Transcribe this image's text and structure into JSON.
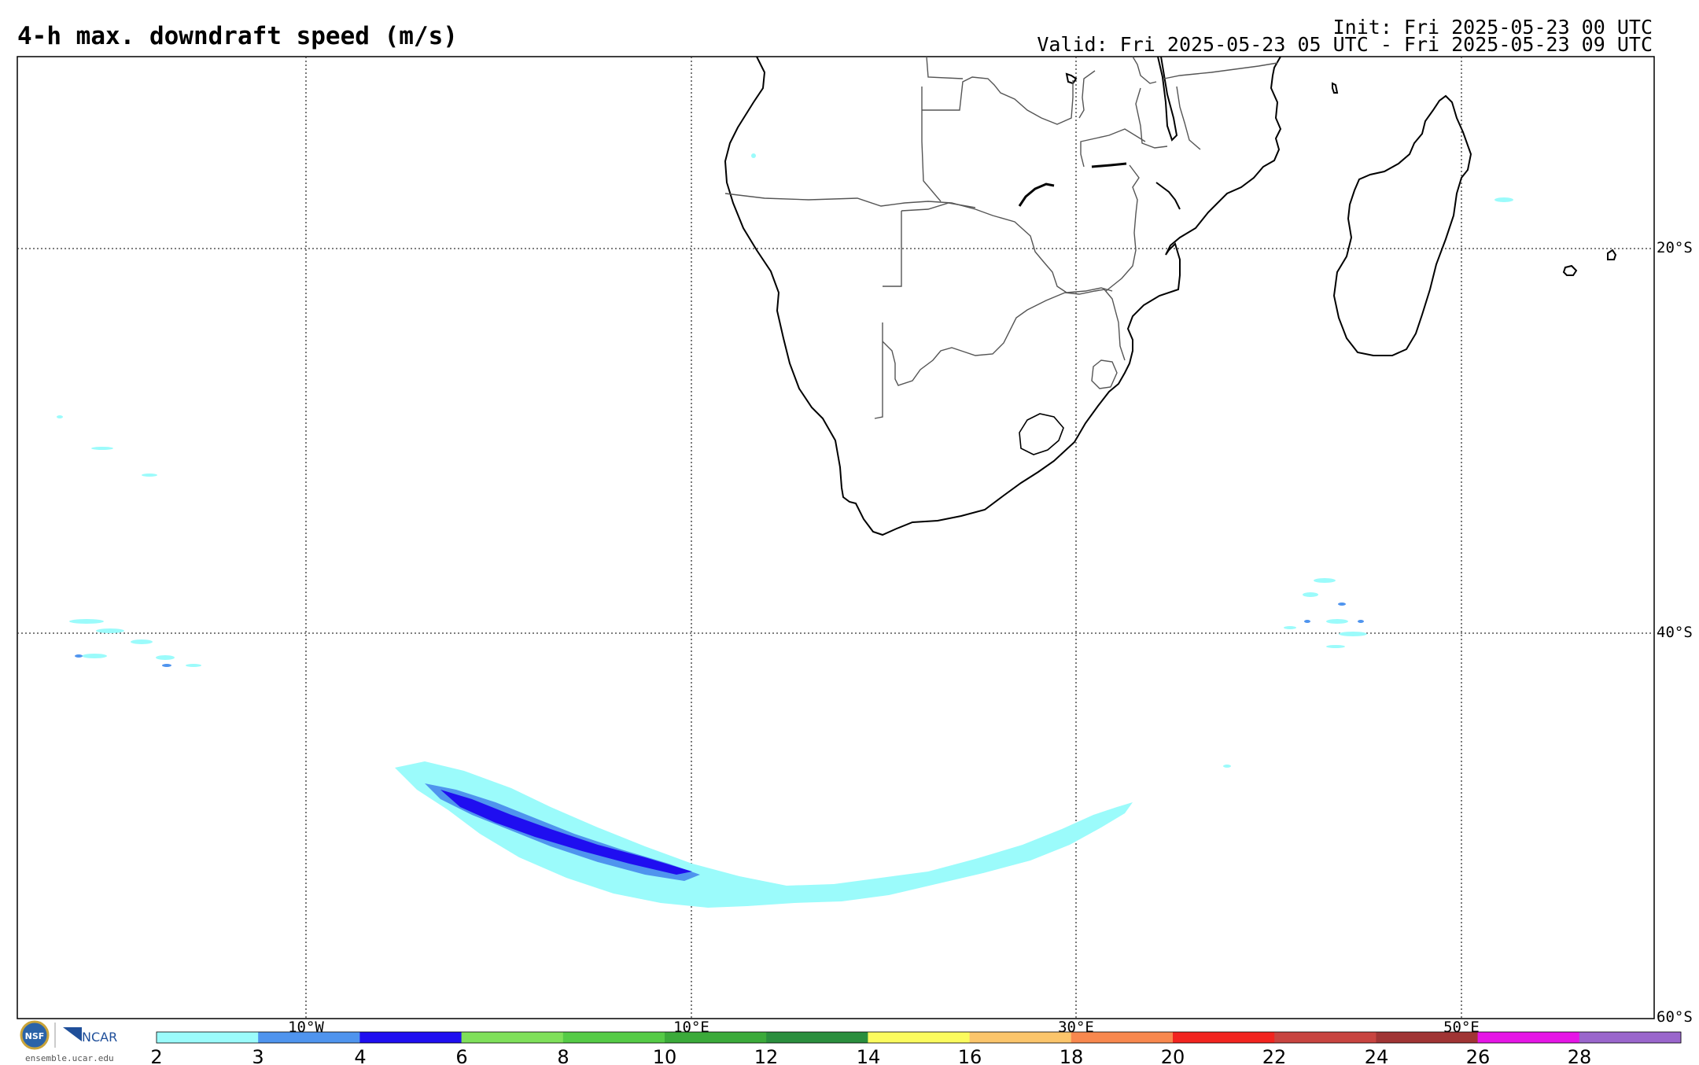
{
  "header": {
    "title": "4-h max. downdraft speed (m/s)",
    "init": "Init: Fri 2025-05-23 00 UTC",
    "valid": "Valid: Fri 2025-05-23 05 UTC - Fri 2025-05-23 09 UTC"
  },
  "map": {
    "lat_labels": [
      "20°S",
      "40°S",
      "60°S"
    ],
    "lon_labels": [
      "10°W",
      "10°E",
      "30°E",
      "50°E"
    ],
    "gridline_style": "dotted",
    "extent": {
      "lon_min": -25,
      "lon_max": 60,
      "lat_min": -60,
      "lat_max": -10
    },
    "features": [
      "coastlines: Southern Africa, Madagascar, Comoros, Mauritius",
      "country borders"
    ]
  },
  "legend": {
    "ticks": [
      "2",
      "3",
      "4",
      "6",
      "8",
      "10",
      "12",
      "14",
      "16",
      "18",
      "20",
      "22",
      "24",
      "26",
      "28"
    ],
    "colors": [
      "#9bfbfb",
      "#4f94ee",
      "#1f0ef0",
      "#7fe05a",
      "#55cb46",
      "#3baa3a",
      "#2a8e3d",
      "#fbfb5e",
      "#fbc56b",
      "#f8884e",
      "#f2241f",
      "#c84440",
      "#a03434",
      "#e615e6",
      "#9a66cc"
    ]
  },
  "branding": {
    "nsf": "NSF",
    "ncar": "NCAR",
    "url": "ensemble.ucar.edu"
  },
  "colors": {
    "light_cyan": "#9bfbfb",
    "medium_blue": "#4f94ee",
    "dark_blue": "#1f0ef0",
    "coast": "#000000",
    "border": "#555555"
  }
}
